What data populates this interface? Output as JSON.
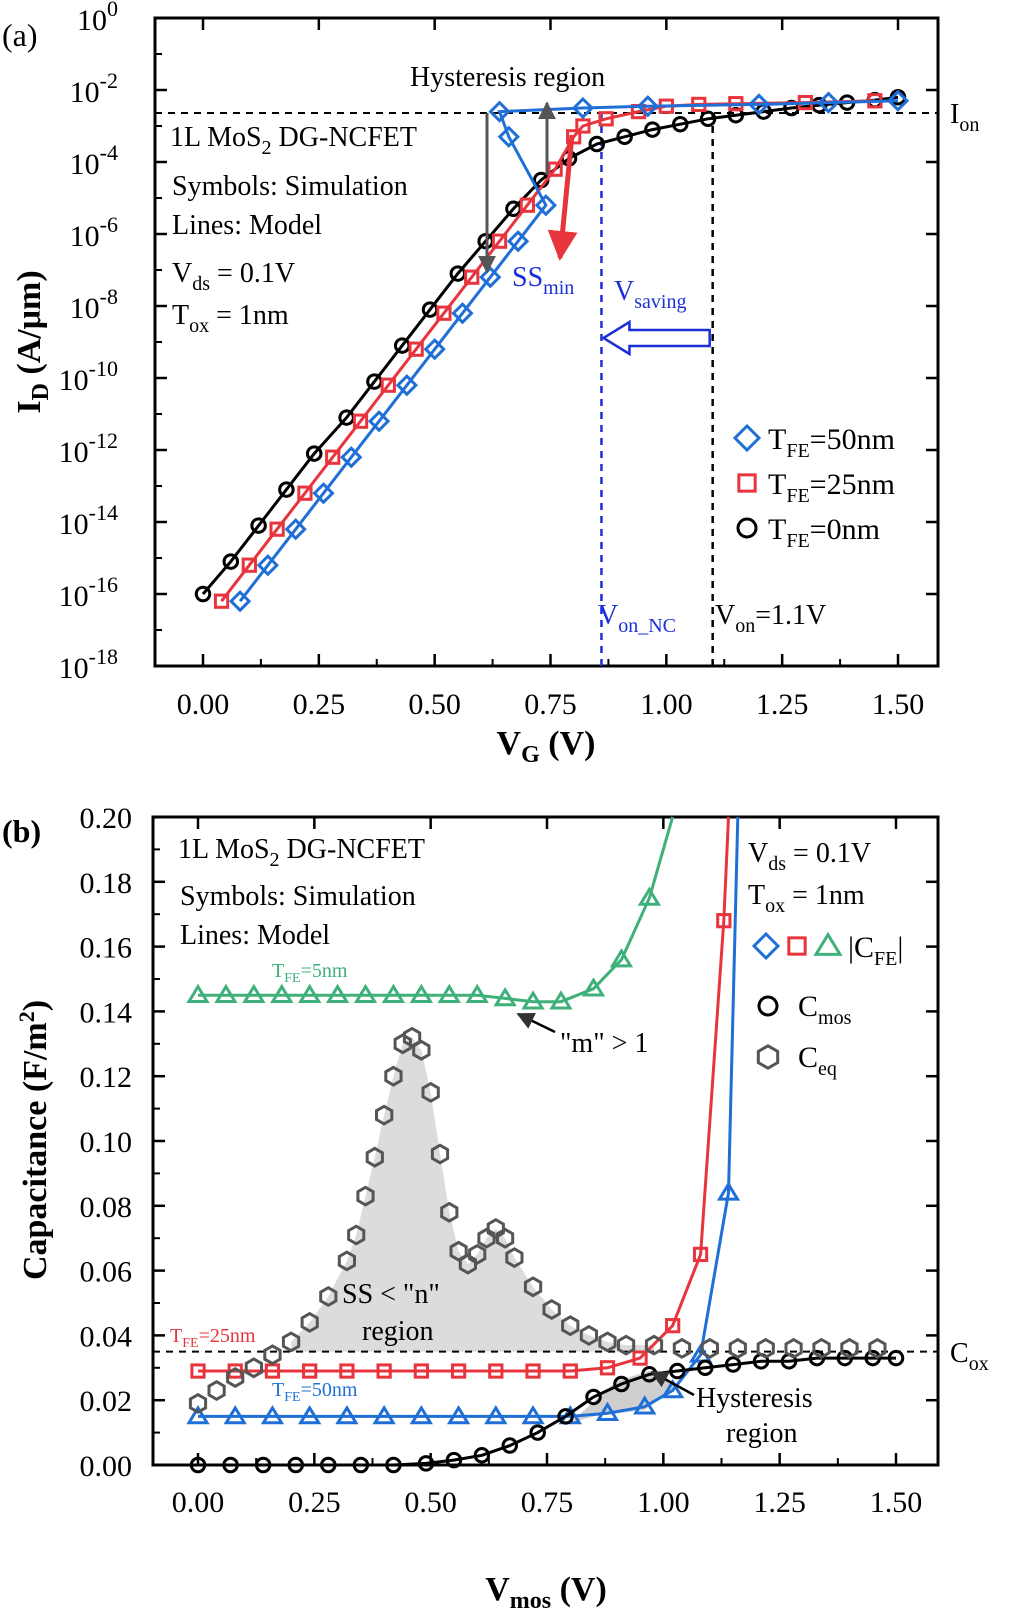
{
  "colors": {
    "black": "#000000",
    "blue": "#1f6fd6",
    "red": "#e8343c",
    "green": "#3fb07a",
    "gray": "#555555",
    "vline_blue": "#1a2fd8"
  },
  "panel_a": {
    "label": "(a)",
    "xlabel": "V",
    "xlabel_sub": "G",
    "xlabel_unit": " (V)",
    "ylabel": "I",
    "ylabel_sub": "D",
    "ylabel_unit": " (A/μm)",
    "xticks": [
      "0.00",
      "0.25",
      "0.50",
      "0.75",
      "1.00",
      "1.25",
      "1.50"
    ],
    "yticks_exp": [
      "0",
      "-2",
      "-4",
      "-6",
      "-8",
      "-10",
      "-12",
      "-14",
      "-16",
      "-18"
    ],
    "ytick_base": "10",
    "info_lines": [
      "1L MoS",
      "Symbols: Simulation",
      "Lines: Model",
      "V",
      "T"
    ],
    "info_sub2": "2",
    "info_rest1": " DG-NCFET",
    "vds_sub": "ds",
    "vds_rest": " = 0.1V",
    "tox_sub": "ox",
    "tox_rest": " = 1nm",
    "hysteresis_text": "Hysteresis region",
    "ss_text": "SS",
    "ss_sub": "min",
    "vsaving_text": "V",
    "vsaving_sub": "saving",
    "ion_text": "I",
    "ion_sub": "on",
    "von_nc_text": "V",
    "von_nc_sub": "on_NC",
    "von_text": "V",
    "von_sub": "on",
    "von_rest": "=1.1V",
    "legend": [
      {
        "prefix": "T",
        "sub": "FE",
        "rest": "=50nm",
        "marker": "diamond",
        "color": "#1f6fd6"
      },
      {
        "prefix": "T",
        "sub": "FE",
        "rest": "=25nm",
        "marker": "square",
        "color": "#e8343c"
      },
      {
        "prefix": "T",
        "sub": "FE",
        "rest": "=0nm",
        "marker": "circle",
        "color": "#000000"
      }
    ]
  },
  "panel_b": {
    "label": "(b)",
    "xlabel": "V",
    "xlabel_sub": "mos",
    "xlabel_unit": " (V)",
    "ylabel": "Capacitance  (F/m",
    "ylabel_sup": "2",
    "ylabel_end": ")",
    "xticks": [
      "0.00",
      "0.25",
      "0.50",
      "0.75",
      "1.00",
      "1.25",
      "1.50"
    ],
    "yticks": [
      "0.00",
      "0.02",
      "0.04",
      "0.06",
      "0.08",
      "0.10",
      "0.12",
      "0.14",
      "0.16",
      "0.18",
      "0.20"
    ],
    "info_line1": "1L MoS",
    "info_sub": "2",
    "info_rest": " DG-NCFET",
    "info_line2": "Symbols: Simulation",
    "info_line3": "Lines: Model",
    "vds_text": "V",
    "vds_sub": "ds",
    "vds_rest": " = 0.1V",
    "tox_text": "T",
    "tox_sub": "ox",
    "tox_rest": " = 1nm",
    "cfe_label": "|C",
    "cfe_sub": "FE",
    "cfe_end": "|",
    "cmos_text": "C",
    "cmos_sub": "mos",
    "ceq_text": "C",
    "ceq_sub": "eq",
    "cox_text": "C",
    "cox_sub": "ox",
    "tfe5_text": "T",
    "tfe5_sub": "FE",
    "tfe5_rest": "=5nm",
    "tfe25_text": "T",
    "tfe25_sub": "FE",
    "tfe25_rest": "=25nm",
    "tfe50_text": "T",
    "tfe50_sub": "FE",
    "tfe50_rest": "=50nm",
    "m_text": "\"m\" > 1",
    "ss_region1": "SS < \"n\"",
    "ss_region2": "region",
    "hyst1": "Hysteresis",
    "hyst2": "region"
  },
  "chart_data": [
    {
      "type": "line",
      "title": "",
      "xlabel": "VG (V)",
      "ylabel": "ID (A/μm)",
      "xlim": [
        -0.09,
        1.6
      ],
      "ylim_log10": [
        -18,
        0
      ],
      "yscale": "log",
      "series": [
        {
          "name": "TFE=0nm",
          "x": [
            0.0,
            0.06,
            0.12,
            0.18,
            0.24,
            0.31,
            0.37,
            0.43,
            0.49,
            0.55,
            0.61,
            0.67,
            0.73,
            0.79,
            0.85,
            0.91,
            0.97,
            1.03,
            1.09,
            1.15,
            1.21,
            1.27,
            1.33,
            1.39,
            1.45,
            1.5
          ],
          "log10_y": [
            -16.0,
            -15.1,
            -14.1,
            -13.1,
            -12.1,
            -11.1,
            -10.1,
            -9.1,
            -8.1,
            -7.1,
            -6.2,
            -5.3,
            -4.5,
            -3.9,
            -3.5,
            -3.3,
            -3.1,
            -2.95,
            -2.8,
            -2.7,
            -2.6,
            -2.5,
            -2.42,
            -2.35,
            -2.28,
            -2.2
          ]
        },
        {
          "name": "TFE=25nm",
          "x": [
            0.04,
            0.1,
            0.16,
            0.22,
            0.28,
            0.34,
            0.4,
            0.46,
            0.52,
            0.58,
            0.64,
            0.7,
            0.76,
            0.8,
            0.82,
            0.87,
            0.94,
            1.0,
            1.07,
            1.15,
            1.3,
            1.45
          ],
          "log10_y": [
            -16.2,
            -15.2,
            -14.2,
            -13.2,
            -12.2,
            -11.2,
            -10.2,
            -9.2,
            -8.2,
            -7.2,
            -6.2,
            -5.2,
            -4.2,
            -3.3,
            -3.0,
            -2.8,
            -2.6,
            -2.45,
            -2.4,
            -2.38,
            -2.35,
            -2.3
          ]
        },
        {
          "name": "TFE=50nm",
          "x": [
            0.08,
            0.14,
            0.2,
            0.26,
            0.32,
            0.38,
            0.44,
            0.5,
            0.56,
            0.62,
            0.68,
            0.74,
            0.66,
            0.64,
            0.82,
            0.96,
            1.2,
            1.35,
            1.5
          ],
          "log10_y": [
            -16.2,
            -15.2,
            -14.2,
            -13.2,
            -12.2,
            -11.2,
            -10.2,
            -9.2,
            -8.2,
            -7.2,
            -6.2,
            -5.2,
            -3.3,
            -2.6,
            -2.5,
            -2.45,
            -2.4,
            -2.35,
            -2.3
          ]
        }
      ],
      "annotations": [
        "Hysteresis region",
        "SSmin",
        "Vsaving",
        "Ion",
        "Von_NC",
        "Von=1.1V"
      ]
    },
    {
      "type": "line",
      "title": "",
      "xlabel": "Vmos (V)",
      "ylabel": "Capacitance (F/m2)",
      "xlim": [
        -0.09,
        1.6
      ],
      "ylim": [
        0,
        0.2
      ],
      "series": [
        {
          "name": "|CFE| TFE=5nm",
          "x": [
            0.0,
            0.06,
            0.12,
            0.18,
            0.24,
            0.3,
            0.36,
            0.42,
            0.48,
            0.54,
            0.6,
            0.66,
            0.72,
            0.78,
            0.85,
            0.91,
            0.97
          ],
          "y": [
            0.145,
            0.145,
            0.145,
            0.145,
            0.145,
            0.145,
            0.145,
            0.145,
            0.145,
            0.145,
            0.145,
            0.144,
            0.143,
            0.143,
            0.147,
            0.156,
            0.175
          ]
        },
        {
          "name": "|CFE| TFE=25nm",
          "x": [
            0.0,
            0.08,
            0.16,
            0.24,
            0.32,
            0.4,
            0.48,
            0.56,
            0.64,
            0.72,
            0.8,
            0.88,
            0.95,
            1.02,
            1.08,
            1.13
          ],
          "y": [
            0.029,
            0.029,
            0.029,
            0.029,
            0.029,
            0.029,
            0.029,
            0.029,
            0.029,
            0.029,
            0.029,
            0.03,
            0.033,
            0.043,
            0.065,
            0.168
          ]
        },
        {
          "name": "|CFE| TFE=50nm",
          "x": [
            0.0,
            0.08,
            0.16,
            0.24,
            0.32,
            0.4,
            0.48,
            0.56,
            0.64,
            0.72,
            0.8,
            0.88,
            0.96,
            1.02,
            1.08,
            1.14
          ],
          "y": [
            0.015,
            0.015,
            0.015,
            0.015,
            0.015,
            0.015,
            0.015,
            0.015,
            0.015,
            0.015,
            0.015,
            0.016,
            0.018,
            0.023,
            0.034,
            0.084
          ]
        },
        {
          "name": "Cmos",
          "x": [
            0.0,
            0.07,
            0.14,
            0.21,
            0.28,
            0.35,
            0.42,
            0.49,
            0.55,
            0.61,
            0.67,
            0.73,
            0.79,
            0.85,
            0.91,
            0.97,
            1.03,
            1.09,
            1.15,
            1.21,
            1.27,
            1.33,
            1.39,
            1.45,
            1.5
          ],
          "y": [
            0.0,
            0.0,
            0.0,
            0.0,
            0.0,
            0.0,
            0.0,
            0.0005,
            0.0015,
            0.003,
            0.006,
            0.01,
            0.015,
            0.021,
            0.025,
            0.028,
            0.029,
            0.03,
            0.031,
            0.032,
            0.032,
            0.033,
            0.033,
            0.033,
            0.033
          ]
        },
        {
          "name": "Ceq",
          "x": [
            0.0,
            0.04,
            0.08,
            0.12,
            0.16,
            0.2,
            0.24,
            0.28,
            0.32,
            0.34,
            0.36,
            0.38,
            0.4,
            0.42,
            0.44,
            0.46,
            0.48,
            0.5,
            0.52,
            0.54,
            0.56,
            0.58,
            0.6,
            0.62,
            0.64,
            0.66,
            0.68,
            0.72,
            0.76,
            0.8,
            0.84,
            0.88,
            0.92,
            0.98,
            1.04,
            1.1,
            1.16,
            1.22,
            1.28,
            1.34,
            1.4,
            1.46
          ],
          "y": [
            0.019,
            0.023,
            0.027,
            0.03,
            0.034,
            0.038,
            0.044,
            0.052,
            0.063,
            0.071,
            0.083,
            0.095,
            0.108,
            0.12,
            0.13,
            0.132,
            0.128,
            0.115,
            0.096,
            0.078,
            0.066,
            0.062,
            0.065,
            0.07,
            0.073,
            0.07,
            0.064,
            0.055,
            0.048,
            0.043,
            0.04,
            0.038,
            0.037,
            0.037,
            0.036,
            0.036,
            0.036,
            0.036,
            0.036,
            0.036,
            0.036,
            0.036
          ]
        }
      ],
      "annotations": [
        "TFE=5nm",
        "TFE=25nm",
        "TFE=50nm",
        "\"m\" > 1",
        "SS < \"n\" region",
        "Hysteresis region",
        "Cox"
      ]
    }
  ]
}
